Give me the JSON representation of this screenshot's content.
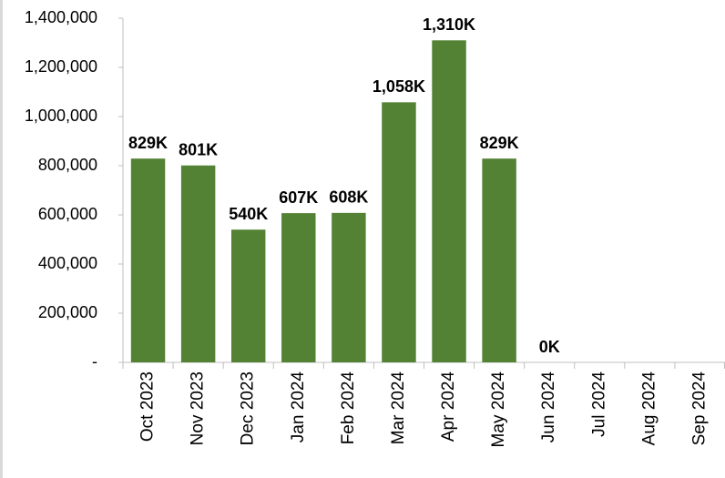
{
  "chart_data": {
    "type": "bar",
    "categories": [
      "Oct 2023",
      "Nov 2023",
      "Dec 2023",
      "Jan 2024",
      "Feb 2024",
      "Mar 2024",
      "Apr 2024",
      "May 2024",
      "Jun 2024",
      "Jul 2024",
      "Aug 2024",
      "Sep 2024"
    ],
    "values": [
      829000,
      801000,
      540000,
      607000,
      608000,
      1058000,
      1310000,
      829000,
      0,
      null,
      null,
      null
    ],
    "value_labels": [
      "829K",
      "801K",
      "540K",
      "607K",
      "608K",
      "1,058K",
      "1,310K",
      "829K",
      "0K",
      null,
      null,
      null
    ],
    "color": "#548235",
    "ylim": [
      0,
      1400000
    ],
    "yticks": [
      {
        "value": 0,
        "label": "-"
      },
      {
        "value": 200000,
        "label": "200,000"
      },
      {
        "value": 400000,
        "label": "400,000"
      },
      {
        "value": 600000,
        "label": "600,000"
      },
      {
        "value": 800000,
        "label": "800,000"
      },
      {
        "value": 1000000,
        "label": "1,000,000"
      },
      {
        "value": 1200000,
        "label": "1,200,000"
      },
      {
        "value": 1400000,
        "label": "1,400,000"
      }
    ],
    "grid": false
  }
}
